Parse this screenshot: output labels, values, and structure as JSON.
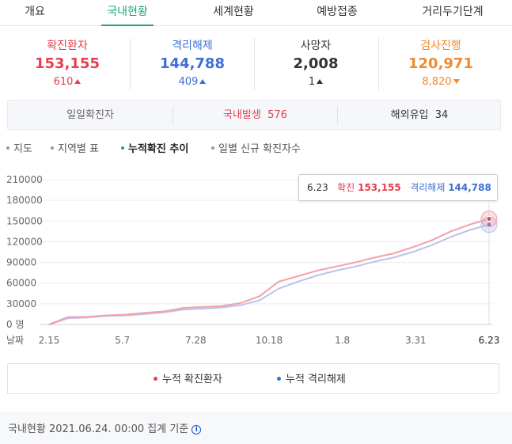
{
  "tabs": [
    {
      "label": "개요"
    },
    {
      "label": "국내현황"
    },
    {
      "label": "세계현황"
    },
    {
      "label": "예방접종"
    },
    {
      "label": "거리두기단계"
    }
  ],
  "stats": [
    {
      "label": "확진환자",
      "value": "153,155",
      "delta": "610",
      "direction": "up",
      "color": "#e4404e"
    },
    {
      "label": "격리해제",
      "value": "144,788",
      "delta": "409",
      "direction": "up",
      "color": "#3d6fd6"
    },
    {
      "label": "사망자",
      "value": "2,008",
      "delta": "1",
      "direction": "up",
      "color": "#333333"
    },
    {
      "label": "검사진행",
      "value": "120,971",
      "delta": "8,820",
      "direction": "down",
      "color": "#f08b2a"
    }
  ],
  "daily": {
    "title": "일일확진자",
    "domestic_label": "국내발생",
    "domestic_value": "576",
    "overseas_label": "해외유입",
    "overseas_value": "34"
  },
  "subnav": {
    "items": [
      {
        "label": "지도"
      },
      {
        "label": "지역별 표"
      },
      {
        "label": "누적확진 추이"
      },
      {
        "label": "일별 신규 확진자수"
      }
    ]
  },
  "tooltip": {
    "date": "6.23",
    "confirmed_label": "확진",
    "confirmed_value": "153,155",
    "released_label": "격리해제",
    "released_value": "144,788"
  },
  "chart_data": {
    "type": "line",
    "xlabel": "날짜",
    "x_ticks": [
      "2.15",
      "5.7",
      "7.28",
      "10.18",
      "1.8",
      "3.31",
      "6.23"
    ],
    "y_ticks": [
      "0 명",
      "30000",
      "60000",
      "90000",
      "120000",
      "150000",
      "180000",
      "210000"
    ],
    "ylim": [
      0,
      210000
    ],
    "grid": true,
    "legend": "bottom",
    "series": [
      {
        "name": "누적 확진환자",
        "color": "#f4a0a8",
        "values": [
          28,
          10800,
          11000,
          13200,
          14300,
          16900,
          19000,
          24000,
          25400,
          26700,
          31000,
          41000,
          62000,
          70000,
          78000,
          84000,
          90000,
          97000,
          103000,
          112000,
          122000,
          135000,
          145000,
          153155
        ]
      },
      {
        "name": "누적 격리해제",
        "color": "#b8c4ec",
        "values": [
          0,
          9000,
          10000,
          12500,
          13000,
          15000,
          17500,
          21500,
          23000,
          24500,
          28000,
          35000,
          52000,
          62000,
          71000,
          78000,
          84000,
          91000,
          97000,
          105000,
          115000,
          127000,
          137000,
          144788
        ]
      }
    ]
  }
}
